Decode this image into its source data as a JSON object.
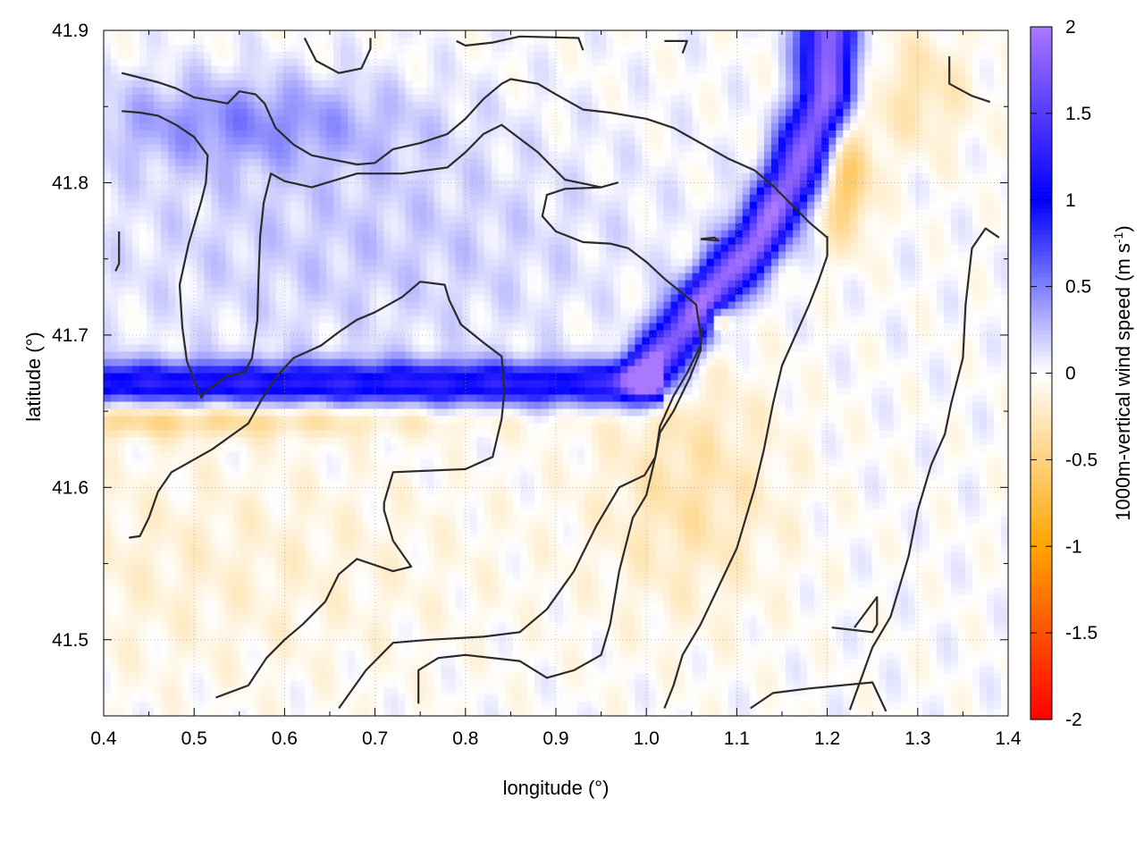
{
  "chart_data": {
    "type": "heatmap",
    "xlabel": "longitude (°)",
    "ylabel": "latitude (°)",
    "colorbar_label": "1000m-vertical wind speed (m s⁻¹)",
    "colorbar_label_main": "1000m-vertical wind speed (m s",
    "colorbar_label_sup": "-1",
    "colorbar_label_close": ")",
    "xlim": [
      0.4,
      1.4
    ],
    "ylim": [
      41.45,
      41.9
    ],
    "zlim": [
      -2,
      2
    ],
    "grid": true,
    "xticks": [
      0.4,
      0.5,
      0.6,
      0.7,
      0.8,
      0.9,
      1.0,
      1.1,
      1.2,
      1.3,
      1.4
    ],
    "xtick_labels": [
      "0.4",
      "0.5",
      "0.6",
      "0.7",
      "0.8",
      "0.9",
      "1.0",
      "1.1",
      "1.2",
      "1.3",
      "1.4"
    ],
    "yticks": [
      41.5,
      41.6,
      41.7,
      41.8,
      41.9
    ],
    "ytick_labels": [
      "41.5",
      "41.6",
      "41.7",
      "41.8",
      "41.9"
    ],
    "cbticks": [
      -2,
      -1.5,
      -1,
      -0.5,
      0,
      0.5,
      1,
      1.5,
      2
    ],
    "cbtick_labels": [
      "-2",
      "-1.5",
      "-1",
      "-0.5",
      "0",
      "0.5",
      "1",
      "1.5",
      "2"
    ],
    "colormap": [
      {
        "v": -2,
        "color": "#ff0000"
      },
      {
        "v": -1,
        "color": "#ffa500"
      },
      {
        "v": 0,
        "color": "#ffffff"
      },
      {
        "v": 1,
        "color": "#0000ff"
      },
      {
        "v": 2,
        "color": "#aa77ff"
      }
    ],
    "features": [
      {
        "kind": "horizontal_band",
        "lat": 41.668,
        "lon_from": 0.4,
        "lon_to": 1.0,
        "width": 0.014,
        "amp": 1.2
      },
      {
        "kind": "polyline_band",
        "points": [
          [
            1.0,
            41.673
          ],
          [
            1.06,
            41.72
          ],
          [
            1.12,
            41.76
          ],
          [
            1.16,
            41.8
          ],
          [
            1.2,
            41.86
          ],
          [
            1.2,
            41.9
          ]
        ],
        "width": 0.03,
        "amp": 1.9
      },
      {
        "kind": "blob",
        "lon": 0.68,
        "lat": 41.76,
        "r_lon": 0.32,
        "r_lat": 0.08,
        "amp": 0.2
      },
      {
        "kind": "blob",
        "lon": 0.55,
        "lat": 41.84,
        "r_lon": 0.18,
        "r_lat": 0.03,
        "amp": 0.4
      },
      {
        "kind": "blob",
        "lon": 0.5,
        "lat": 41.55,
        "r_lon": 0.35,
        "r_lat": 0.08,
        "amp": -0.15
      },
      {
        "kind": "blob",
        "lon": 0.45,
        "lat": 41.645,
        "r_lon": 0.35,
        "r_lat": 0.012,
        "amp": -0.45
      },
      {
        "kind": "blob",
        "lon": 1.05,
        "lat": 41.6,
        "r_lon": 0.1,
        "r_lat": 0.08,
        "amp": -0.3
      },
      {
        "kind": "blob",
        "lon": 1.22,
        "lat": 41.8,
        "r_lon": 0.03,
        "r_lat": 0.04,
        "amp": -0.6
      },
      {
        "kind": "blob",
        "lon": 1.08,
        "lat": 41.71,
        "r_lon": 0.012,
        "r_lat": 0.008,
        "amp": -0.8
      },
      {
        "kind": "blob",
        "lon": 1.3,
        "lat": 41.86,
        "r_lon": 0.06,
        "r_lat": 0.04,
        "amp": -0.3
      }
    ],
    "contours": [
      [
        [
          0.42,
          41.872
        ],
        [
          0.46,
          41.866
        ],
        [
          0.48,
          41.862
        ],
        [
          0.5,
          41.856
        ],
        [
          0.52,
          41.854
        ],
        [
          0.537,
          41.852
        ],
        [
          0.55,
          41.86
        ],
        [
          0.568,
          41.858
        ],
        [
          0.578,
          41.852
        ],
        [
          0.59,
          41.836
        ],
        [
          0.61,
          41.825
        ],
        [
          0.63,
          41.818
        ],
        [
          0.655,
          41.815
        ],
        [
          0.68,
          41.812
        ],
        [
          0.7,
          41.813
        ],
        [
          0.72,
          41.822
        ],
        [
          0.75,
          41.826
        ],
        [
          0.78,
          41.832
        ],
        [
          0.8,
          41.842
        ],
        [
          0.82,
          41.855
        ],
        [
          0.84,
          41.865
        ],
        [
          0.85,
          41.868
        ],
        [
          0.88,
          41.865
        ],
        [
          0.9,
          41.858
        ],
        [
          0.93,
          41.848
        ],
        [
          0.96,
          41.846
        ],
        [
          1.0,
          41.842
        ],
        [
          1.03,
          41.836
        ],
        [
          1.06,
          41.826
        ],
        [
          1.09,
          41.816
        ],
        [
          1.12,
          41.808
        ],
        [
          1.14,
          41.798
        ],
        [
          1.16,
          41.786
        ],
        [
          1.18,
          41.774
        ],
        [
          1.2,
          41.764
        ]
      ],
      [
        [
          0.42,
          41.847
        ],
        [
          0.44,
          41.846
        ],
        [
          0.46,
          41.844
        ],
        [
          0.48,
          41.838
        ],
        [
          0.5,
          41.83
        ],
        [
          0.515,
          41.818
        ],
        [
          0.513,
          41.8
        ],
        [
          0.508,
          41.788
        ],
        [
          0.494,
          41.76
        ],
        [
          0.484,
          41.733
        ],
        [
          0.487,
          41.705
        ],
        [
          0.492,
          41.683
        ],
        [
          0.5,
          41.67
        ],
        [
          0.508,
          41.659
        ],
        [
          0.513,
          41.663
        ],
        [
          0.533,
          41.672
        ],
        [
          0.556,
          41.676
        ],
        [
          0.564,
          41.685
        ],
        [
          0.57,
          41.71
        ],
        [
          0.571,
          41.735
        ],
        [
          0.573,
          41.765
        ],
        [
          0.577,
          41.787
        ],
        [
          0.585,
          41.806
        ],
        [
          0.6,
          41.801
        ],
        [
          0.63,
          41.797
        ],
        [
          0.68,
          41.806
        ],
        [
          0.73,
          41.806
        ],
        [
          0.78,
          41.81
        ],
        [
          0.8,
          41.82
        ],
        [
          0.82,
          41.832
        ],
        [
          0.84,
          41.838
        ],
        [
          0.88,
          41.82
        ],
        [
          0.91,
          41.802
        ],
        [
          0.95,
          41.797
        ],
        [
          0.968,
          41.8
        ],
        [
          0.95,
          41.797
        ],
        [
          0.91,
          41.796
        ],
        [
          0.89,
          41.792
        ],
        [
          0.885,
          41.778
        ],
        [
          0.9,
          41.768
        ],
        [
          0.93,
          41.761
        ],
        [
          0.96,
          41.76
        ],
        [
          0.98,
          41.757
        ],
        [
          1.0,
          41.748
        ],
        [
          1.02,
          41.737
        ],
        [
          1.045,
          41.725
        ],
        [
          1.055,
          41.72
        ],
        [
          1.06,
          41.7
        ],
        [
          1.06,
          41.69
        ],
        [
          1.048,
          41.672
        ],
        [
          1.03,
          41.65
        ],
        [
          1.015,
          41.636
        ],
        [
          1.01,
          41.62
        ],
        [
          0.998,
          41.608
        ],
        [
          0.97,
          41.6
        ],
        [
          0.945,
          41.575
        ],
        [
          0.92,
          41.545
        ],
        [
          0.89,
          41.52
        ],
        [
          0.86,
          41.505
        ],
        [
          0.82,
          41.502
        ],
        [
          0.76,
          41.5
        ],
        [
          0.72,
          41.498
        ],
        [
          0.69,
          41.48
        ],
        [
          0.66,
          41.455
        ]
      ],
      [
        [
          0.417,
          41.768
        ],
        [
          0.417,
          41.747
        ],
        [
          0.413,
          41.742
        ]
      ],
      [
        [
          0.428,
          41.567
        ],
        [
          0.44,
          41.568
        ],
        [
          0.45,
          41.58
        ],
        [
          0.46,
          41.597
        ],
        [
          0.475,
          41.61
        ],
        [
          0.49,
          41.615
        ],
        [
          0.52,
          41.625
        ],
        [
          0.56,
          41.642
        ],
        [
          0.575,
          41.658
        ],
        [
          0.59,
          41.672
        ],
        [
          0.61,
          41.685
        ],
        [
          0.64,
          41.693
        ],
        [
          0.66,
          41.702
        ],
        [
          0.68,
          41.71
        ],
        [
          0.7,
          41.715
        ],
        [
          0.73,
          41.725
        ],
        [
          0.75,
          41.735
        ],
        [
          0.777,
          41.733
        ],
        [
          0.782,
          41.723
        ],
        [
          0.795,
          41.707
        ],
        [
          0.82,
          41.695
        ],
        [
          0.84,
          41.686
        ],
        [
          0.843,
          41.663
        ],
        [
          0.84,
          41.645
        ],
        [
          0.83,
          41.62
        ],
        [
          0.8,
          41.612
        ],
        [
          0.72,
          41.61
        ],
        [
          0.71,
          41.59
        ],
        [
          0.71,
          41.585
        ],
        [
          0.72,
          41.565
        ],
        [
          0.74,
          41.548
        ],
        [
          0.72,
          41.545
        ],
        [
          0.68,
          41.553
        ],
        [
          0.66,
          41.543
        ],
        [
          0.645,
          41.525
        ],
        [
          0.62,
          41.51
        ],
        [
          0.6,
          41.5
        ],
        [
          0.58,
          41.488
        ],
        [
          0.56,
          41.47
        ],
        [
          0.524,
          41.462
        ]
      ],
      [
        [
          0.748,
          41.458
        ],
        [
          0.748,
          41.48
        ],
        [
          0.77,
          41.488
        ],
        [
          0.8,
          41.49
        ],
        [
          0.86,
          41.486
        ],
        [
          0.89,
          41.475
        ],
        [
          0.92,
          41.48
        ],
        [
          0.95,
          41.49
        ],
        [
          0.96,
          41.51
        ],
        [
          0.97,
          41.545
        ],
        [
          0.985,
          41.58
        ],
        [
          1.0,
          41.595
        ],
        [
          1.01,
          41.62
        ],
        [
          1.015,
          41.64
        ],
        [
          1.03,
          41.66
        ],
        [
          1.045,
          41.675
        ],
        [
          1.06,
          41.693
        ],
        [
          1.062,
          41.705
        ]
      ],
      [
        [
          1.02,
          41.455
        ],
        [
          1.03,
          41.47
        ],
        [
          1.04,
          41.49
        ],
        [
          1.06,
          41.51
        ],
        [
          1.08,
          41.535
        ],
        [
          1.1,
          41.56
        ],
        [
          1.11,
          41.58
        ],
        [
          1.12,
          41.6
        ],
        [
          1.13,
          41.625
        ],
        [
          1.14,
          41.655
        ],
        [
          1.15,
          41.68
        ],
        [
          1.165,
          41.7
        ],
        [
          1.18,
          41.72
        ],
        [
          1.19,
          41.735
        ],
        [
          1.2,
          41.752
        ],
        [
          1.2,
          41.765
        ]
      ],
      [
        [
          1.115,
          41.455
        ],
        [
          1.14,
          41.465
        ],
        [
          1.18,
          41.468
        ],
        [
          1.25,
          41.472
        ],
        [
          1.265,
          41.453
        ]
      ],
      [
        [
          1.205,
          41.508
        ],
        [
          1.25,
          41.505
        ],
        [
          1.255,
          41.51
        ],
        [
          1.255,
          41.528
        ],
        [
          1.25,
          41.524
        ],
        [
          1.23,
          41.508
        ]
      ],
      [
        [
          1.225,
          41.454
        ],
        [
          1.25,
          41.495
        ],
        [
          1.27,
          41.515
        ],
        [
          1.28,
          41.535
        ],
        [
          1.29,
          41.555
        ],
        [
          1.3,
          41.585
        ],
        [
          1.315,
          41.615
        ],
        [
          1.33,
          41.635
        ],
        [
          1.337,
          41.655
        ],
        [
          1.35,
          41.685
        ],
        [
          1.353,
          41.72
        ],
        [
          1.36,
          41.757
        ],
        [
          1.375,
          41.77
        ],
        [
          1.39,
          41.764
        ]
      ],
      [
        [
          0.622,
          41.895
        ],
        [
          0.635,
          41.88
        ],
        [
          0.66,
          41.872
        ],
        [
          0.685,
          41.875
        ],
        [
          0.695,
          41.888
        ],
        [
          0.695,
          41.895
        ]
      ],
      [
        [
          0.79,
          41.893
        ],
        [
          0.8,
          41.89
        ],
        [
          0.83,
          41.892
        ],
        [
          0.86,
          41.896
        ],
        [
          0.925,
          41.895
        ],
        [
          0.93,
          41.887
        ]
      ],
      [
        [
          1.02,
          41.893
        ],
        [
          1.045,
          41.893
        ],
        [
          1.04,
          41.885
        ]
      ],
      [
        [
          1.335,
          41.883
        ],
        [
          1.335,
          41.865
        ],
        [
          1.36,
          41.857
        ],
        [
          1.38,
          41.853
        ]
      ],
      [
        [
          1.06,
          41.763
        ],
        [
          1.08,
          41.762
        ],
        [
          1.075,
          41.764
        ],
        [
          1.06,
          41.763
        ]
      ]
    ]
  }
}
